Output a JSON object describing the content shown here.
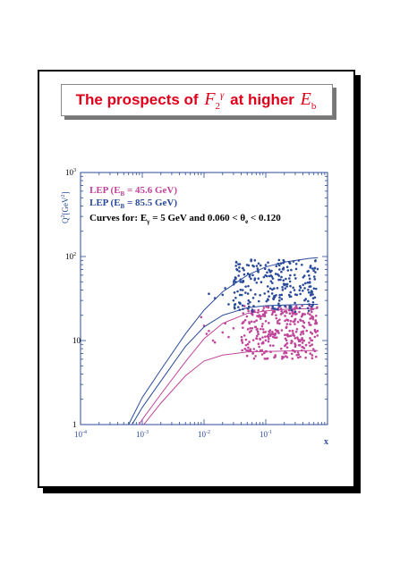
{
  "title": {
    "prefix": "The prospects of",
    "func_symbol": "F",
    "func_sub": "2",
    "func_sup": "γ",
    "middle": "at higher",
    "energy_symbol": "E",
    "energy_sub": "b"
  },
  "chart_data": {
    "type": "scatter",
    "xscale": "log",
    "yscale": "log",
    "xlim": [
      0.0001,
      1
    ],
    "ylim": [
      1,
      1000
    ],
    "x_ticks": [
      "10",
      "10",
      "10",
      "10"
    ],
    "x_tick_exponents": [
      "-4",
      "-3",
      "-2",
      "-1"
    ],
    "x_tick_values": [
      0.0001,
      0.001,
      0.01,
      0.1
    ],
    "y_ticks": [
      "1",
      "10",
      "10",
      "10"
    ],
    "y_tick_exponents": [
      "",
      "",
      "2",
      "3"
    ],
    "y_tick_values": [
      1,
      10,
      100,
      1000
    ],
    "xlabel": "x",
    "ylabel_main": "Q",
    "ylabel_sup1": "2",
    "ylabel_mid": "[GeV",
    "ylabel_sup2": "2",
    "ylabel_end": "]",
    "legend_placement": "top-left",
    "legend": [
      {
        "text": "LEP (E",
        "sub": "B",
        "text2": " = 45.6 GeV)",
        "color": "#c0449a"
      },
      {
        "text": "LEP (E",
        "sub": "B",
        "text2": " = 85.5 GeV)",
        "color": "#2a4a9a"
      }
    ],
    "annotation": {
      "a": "Curves for: E",
      "a_sub": "γ",
      "b": " = 5 GeV and 0.060 < θ",
      "b_sub": "e",
      "c": " < 0.120",
      "color": "#000000"
    },
    "series": [
      {
        "name": "LEP (EB = 45.6 GeV)",
        "color": "#c0449a",
        "points": {
          "x_range": [
            0.04,
            0.7
          ],
          "y_range": [
            6,
            26
          ],
          "count": 330
        },
        "extra_points": [
          [
            0.009,
            19
          ],
          [
            0.01,
            15
          ],
          [
            0.011,
            12
          ],
          [
            0.014,
            10
          ],
          [
            0.015,
            9.5
          ],
          [
            0.012,
            13
          ],
          [
            0.02,
            12.5
          ],
          [
            0.025,
            11
          ],
          [
            0.03,
            14
          ],
          [
            0.022,
            16
          ]
        ],
        "curves": [
          {
            "x": [
              0.0008,
              0.001,
              0.002,
              0.005,
              0.01,
              0.02,
              0.05,
              0.1,
              0.2,
              0.5,
              0.7
            ],
            "y": [
              0.75,
              0.95,
              1.8,
              3.8,
              5.7,
              6.7,
              7.3,
              7.4,
              7.5,
              7.6,
              7.6
            ]
          },
          {
            "x": [
              0.0008,
              0.001,
              0.002,
              0.005,
              0.01,
              0.02,
              0.05,
              0.1,
              0.2,
              0.5,
              0.7
            ],
            "y": [
              0.9,
              1.15,
              2.3,
              5.6,
              10.5,
              16,
              21,
              22.5,
              23.5,
              24,
              24
            ]
          }
        ]
      },
      {
        "name": "LEP (EB = 85.5 GeV)",
        "color": "#2a4a9a",
        "points": {
          "x_range": [
            0.03,
            0.7
          ],
          "y_range": [
            22,
            95
          ],
          "count": 250
        },
        "extra_points": [
          [
            0.012,
            36
          ],
          [
            0.02,
            35
          ],
          [
            0.025,
            27
          ],
          [
            0.03,
            30
          ],
          [
            0.022,
            42
          ],
          [
            0.015,
            32
          ]
        ],
        "curves": [
          {
            "x": [
              0.0006,
              0.001,
              0.002,
              0.005,
              0.01,
              0.02,
              0.05,
              0.1,
              0.2,
              0.5,
              0.7
            ],
            "y": [
              0.85,
              1.6,
              3.3,
              8.5,
              14.5,
              20,
              24.5,
              26,
              26.5,
              27,
              27
            ]
          },
          {
            "x": [
              0.0006,
              0.001,
              0.002,
              0.005,
              0.01,
              0.02,
              0.05,
              0.1,
              0.2,
              0.5,
              0.7
            ],
            "y": [
              1.0,
              2.1,
              4.5,
              12,
              23,
              38,
              60,
              75,
              86,
              95,
              97
            ]
          }
        ]
      }
    ]
  }
}
